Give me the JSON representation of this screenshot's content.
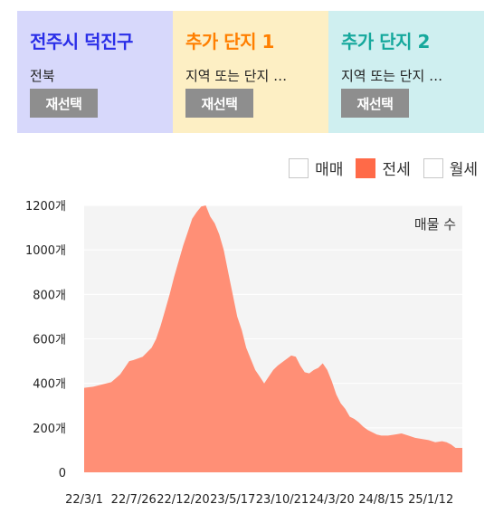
{
  "cards": [
    {
      "title": "전주시 덕진구",
      "subtitle": "전북",
      "button": "재선택",
      "bg": "#d7d8fb",
      "color": "#2a2ee8"
    },
    {
      "title": "추가 단지 1",
      "subtitle": "지역 또는 단지 …",
      "button": "재선택",
      "bg": "#fdefc4",
      "color": "#ff7f00"
    },
    {
      "title": "추가 단지 2",
      "subtitle": "지역 또는 단지 …",
      "button": "재선택",
      "bg": "#cfeff0",
      "color": "#15a89c"
    }
  ],
  "legend": [
    {
      "label": "매매",
      "checked": false
    },
    {
      "label": "전세",
      "checked": true
    },
    {
      "label": "월세",
      "checked": false
    }
  ],
  "chart_data": {
    "type": "area",
    "annotation": "매물 수",
    "y_ticks": [
      "0",
      "200개",
      "400개",
      "600개",
      "800개",
      "1000개",
      "1200개"
    ],
    "y_tick_values": [
      0,
      200,
      400,
      600,
      800,
      1000,
      1200
    ],
    "ylim": [
      0,
      1200
    ],
    "x_ticks": [
      "22/3/1",
      "22/7/26",
      "22/12/20",
      "23/5/17",
      "23/10/21",
      "24/3/20",
      "24/8/15",
      "25/1/12"
    ],
    "x_tick_values": [
      0,
      44,
      88,
      132,
      176,
      220,
      264,
      308
    ],
    "x": [
      0,
      8,
      16,
      24,
      32,
      36,
      40,
      44,
      52,
      60,
      64,
      68,
      72,
      76,
      80,
      84,
      88,
      92,
      96,
      100,
      104,
      108,
      112,
      116,
      120,
      124,
      128,
      132,
      136,
      140,
      144,
      148,
      152,
      156,
      160,
      164,
      168,
      172,
      176,
      180,
      184,
      188,
      192,
      196,
      200,
      204,
      208,
      212,
      216,
      220,
      224,
      228,
      232,
      236,
      240,
      244,
      248,
      252,
      256,
      260,
      264,
      270,
      276,
      282,
      288,
      294,
      300,
      306,
      312,
      318,
      322,
      326,
      330,
      336
    ],
    "values": [
      380,
      385,
      395,
      405,
      440,
      470,
      500,
      505,
      520,
      560,
      600,
      660,
      730,
      800,
      880,
      950,
      1020,
      1080,
      1140,
      1170,
      1195,
      1200,
      1150,
      1120,
      1070,
      1000,
      900,
      800,
      700,
      640,
      560,
      510,
      460,
      430,
      400,
      430,
      460,
      480,
      495,
      510,
      525,
      520,
      480,
      450,
      445,
      460,
      470,
      490,
      460,
      410,
      350,
      310,
      285,
      250,
      240,
      225,
      205,
      190,
      180,
      170,
      165,
      165,
      170,
      175,
      165,
      155,
      150,
      145,
      135,
      140,
      135,
      125,
      110,
      110
    ],
    "color": "#ff8f76",
    "grid": true
  }
}
